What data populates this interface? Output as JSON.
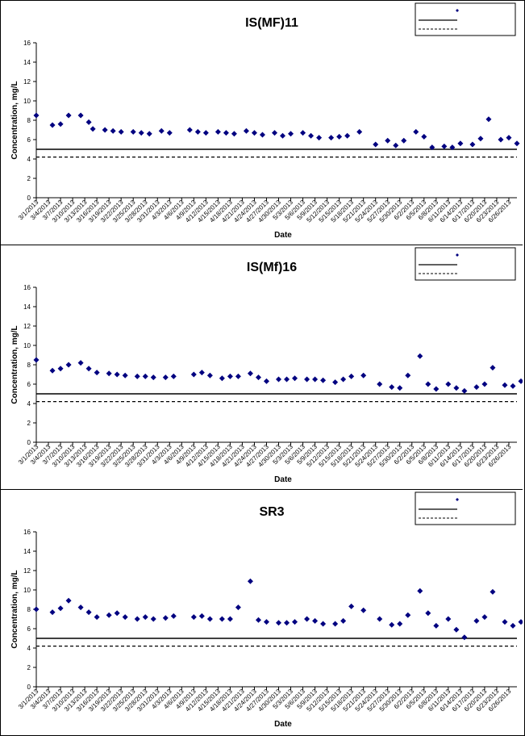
{
  "colors": {
    "marker": "#000080",
    "line": "#000000",
    "background": "#ffffff"
  },
  "chart_data": [
    {
      "type": "scatter",
      "title": "IS(MF)11",
      "xlabel": "Date",
      "ylabel": "Concentration, mg/L",
      "ylim": [
        0,
        16
      ],
      "yticks": [
        "0",
        "2",
        "4",
        "6",
        "8",
        "10",
        "12",
        "14",
        "16"
      ],
      "xlim": [
        "3/1/2013",
        "6/28/2013"
      ],
      "xticks": [
        "3/1/2013",
        "3/4/2013",
        "3/7/2013",
        "3/10/2013",
        "3/13/2013",
        "3/16/2013",
        "3/19/2013",
        "3/22/2013",
        "3/25/2013",
        "3/28/2013",
        "3/31/2013",
        "4/3/2013",
        "4/6/2013",
        "4/9/2013",
        "4/12/2013",
        "4/15/2013",
        "4/18/2013",
        "4/21/2013",
        "4/24/2013",
        "4/27/2013",
        "4/30/2013",
        "5/3/2013",
        "5/6/2013",
        "5/9/2013",
        "5/12/2013",
        "5/15/2013",
        "5/18/2013",
        "5/21/2013",
        "5/24/2013",
        "5/27/2013",
        "5/30/2013",
        "6/2/2013",
        "6/5/2013",
        "6/8/2013",
        "6/11/2013",
        "6/14/2013",
        "6/17/2013",
        "6/20/2013",
        "6/23/2013",
        "6/26/2013"
      ],
      "grid": false,
      "legend_position": "top-right",
      "legend": [
        "",
        "",
        ""
      ],
      "reference_lines": [
        {
          "style": "solid",
          "value": 5.0
        },
        {
          "style": "dashed",
          "value": 4.2
        }
      ],
      "series": [
        {
          "x": [
            "3/1/2013",
            "3/5/2013",
            "3/7/2013",
            "3/9/2013",
            "3/12/2013",
            "3/14/2013",
            "3/15/2013",
            "3/18/2013",
            "3/20/2013",
            "3/22/2013",
            "3/25/2013",
            "3/27/2013",
            "3/29/2013",
            "4/1/2013",
            "4/3/2013",
            "4/8/2013",
            "4/10/2013",
            "4/12/2013",
            "4/15/2013",
            "4/17/2013",
            "4/19/2013",
            "4/22/2013",
            "4/24/2013",
            "4/26/2013",
            "4/29/2013",
            "5/1/2013",
            "5/3/2013",
            "5/6/2013",
            "5/8/2013",
            "5/10/2013",
            "5/13/2013",
            "5/15/2013",
            "5/17/2013",
            "5/20/2013",
            "5/24/2013",
            "5/27/2013",
            "5/29/2013",
            "5/31/2013",
            "6/3/2013",
            "6/5/2013",
            "6/7/2013",
            "6/10/2013",
            "6/12/2013",
            "6/14/2013",
            "6/17/2013",
            "6/19/2013",
            "6/21/2013",
            "6/24/2013",
            "6/26/2013",
            "6/28/2013"
          ],
          "values": [
            8.5,
            7.5,
            7.6,
            8.5,
            8.5,
            7.8,
            7.1,
            7.0,
            6.9,
            6.8,
            6.8,
            6.7,
            6.6,
            6.9,
            6.7,
            7.0,
            6.8,
            6.7,
            6.8,
            6.7,
            6.6,
            6.9,
            6.7,
            6.5,
            6.7,
            6.4,
            6.6,
            6.7,
            6.4,
            6.2,
            6.2,
            6.3,
            6.4,
            6.8,
            5.5,
            5.9,
            5.4,
            5.9,
            6.8,
            6.3,
            5.2,
            5.3,
            5.2,
            5.6,
            5.5,
            6.1,
            8.1,
            6.0,
            6.2,
            5.6
          ]
        }
      ]
    },
    {
      "type": "scatter",
      "title": "IS(Mf)16",
      "xlabel": "Date",
      "ylabel": "Concentration, mg/L",
      "ylim": [
        0,
        16
      ],
      "yticks": [
        "0",
        "2",
        "4",
        "6",
        "8",
        "10",
        "12",
        "14",
        "16"
      ],
      "xlim": [
        "3/1/2013",
        "6/28/2013"
      ],
      "xticks": [
        "3/1/2013",
        "3/4/2013",
        "3/7/2013",
        "3/10/2013",
        "3/13/2013",
        "3/16/2013",
        "3/19/2013",
        "3/22/2013",
        "3/25/2013",
        "3/28/2013",
        "3/31/2013",
        "4/3/2013",
        "4/6/2013",
        "4/9/2013",
        "4/12/2013",
        "4/15/2013",
        "4/18/2013",
        "4/21/2013",
        "4/24/2013",
        "4/27/2013",
        "4/30/2013",
        "5/3/2013",
        "5/6/2013",
        "5/9/2013",
        "5/12/2013",
        "5/15/2013",
        "5/18/2013",
        "5/21/2013",
        "5/24/2013",
        "5/27/2013",
        "5/30/2013",
        "6/2/2013",
        "6/5/2013",
        "6/8/2013",
        "6/11/2013",
        "6/14/2013",
        "6/17/2013",
        "6/20/2013",
        "6/23/2013",
        "6/26/2013"
      ],
      "grid": false,
      "legend_position": "top-right",
      "legend": [
        "",
        "",
        ""
      ],
      "reference_lines": [
        {
          "style": "solid",
          "value": 5.0
        },
        {
          "style": "dashed",
          "value": 4.2
        }
      ],
      "series": [
        {
          "x": [
            "3/1/2013",
            "3/5/2013",
            "3/7/2013",
            "3/9/2013",
            "3/12/2013",
            "3/14/2013",
            "3/16/2013",
            "3/19/2013",
            "3/21/2013",
            "3/23/2013",
            "3/26/2013",
            "3/28/2013",
            "3/30/2013",
            "4/2/2013",
            "4/4/2013",
            "4/9/2013",
            "4/11/2013",
            "4/13/2013",
            "4/16/2013",
            "4/18/2013",
            "4/20/2013",
            "4/23/2013",
            "4/25/2013",
            "4/27/2013",
            "4/30/2013",
            "5/2/2013",
            "5/4/2013",
            "5/7/2013",
            "5/9/2013",
            "5/11/2013",
            "5/14/2013",
            "5/16/2013",
            "5/18/2013",
            "5/21/2013",
            "5/25/2013",
            "5/28/2013",
            "5/30/2013",
            "6/1/2013",
            "6/4/2013",
            "6/6/2013",
            "6/8/2013",
            "6/11/2013",
            "6/13/2013",
            "6/15/2013",
            "6/18/2013",
            "6/20/2013",
            "6/22/2013",
            "6/25/2013",
            "6/27/2013",
            "6/29/2013"
          ],
          "values": [
            8.5,
            7.4,
            7.6,
            8.0,
            8.2,
            7.6,
            7.2,
            7.1,
            7.0,
            6.9,
            6.8,
            6.8,
            6.7,
            6.7,
            6.8,
            7.0,
            7.2,
            6.9,
            6.6,
            6.8,
            6.8,
            7.1,
            6.7,
            6.3,
            6.5,
            6.5,
            6.6,
            6.5,
            6.5,
            6.4,
            6.2,
            6.5,
            6.8,
            6.9,
            6.0,
            5.7,
            5.6,
            6.9,
            8.9,
            6.0,
            5.5,
            6.0,
            5.6,
            5.3,
            5.7,
            6.0,
            7.7,
            5.9,
            5.8,
            6.3
          ]
        }
      ]
    },
    {
      "type": "scatter",
      "title": "SR3",
      "xlabel": "Date",
      "ylabel": "Concentration, mg/L",
      "ylim": [
        0,
        16
      ],
      "yticks": [
        "0",
        "2",
        "4",
        "6",
        "8",
        "10",
        "12",
        "14",
        "16"
      ],
      "xlim": [
        "3/1/2013",
        "6/28/2013"
      ],
      "xticks": [
        "3/1/2013",
        "3/4/2013",
        "3/7/2013",
        "3/10/2013",
        "3/13/2013",
        "3/16/2013",
        "3/19/2013",
        "3/22/2013",
        "3/25/2013",
        "3/28/2013",
        "3/31/2013",
        "4/3/2013",
        "4/6/2013",
        "4/9/2013",
        "4/12/2013",
        "4/15/2013",
        "4/18/2013",
        "4/21/2013",
        "4/24/2013",
        "4/27/2013",
        "4/30/2013",
        "5/3/2013",
        "5/6/2013",
        "5/9/2013",
        "5/12/2013",
        "5/15/2013",
        "5/18/2013",
        "5/21/2013",
        "5/24/2013",
        "5/27/2013",
        "5/30/2013",
        "6/2/2013",
        "6/5/2013",
        "6/8/2013",
        "6/11/2013",
        "6/14/2013",
        "6/17/2013",
        "6/20/2013",
        "6/23/2013",
        "6/26/2013"
      ],
      "grid": false,
      "legend_position": "top-right",
      "legend": [
        "",
        "",
        ""
      ],
      "reference_lines": [
        {
          "style": "solid",
          "value": 5.0
        },
        {
          "style": "dashed",
          "value": 4.2
        }
      ],
      "series": [
        {
          "x": [
            "3/1/2013",
            "3/5/2013",
            "3/7/2013",
            "3/9/2013",
            "3/12/2013",
            "3/14/2013",
            "3/16/2013",
            "3/19/2013",
            "3/21/2013",
            "3/23/2013",
            "3/26/2013",
            "3/28/2013",
            "3/30/2013",
            "4/2/2013",
            "4/4/2013",
            "4/9/2013",
            "4/11/2013",
            "4/13/2013",
            "4/16/2013",
            "4/18/2013",
            "4/20/2013",
            "4/23/2013",
            "4/25/2013",
            "4/27/2013",
            "4/30/2013",
            "5/2/2013",
            "5/4/2013",
            "5/7/2013",
            "5/9/2013",
            "5/11/2013",
            "5/14/2013",
            "5/16/2013",
            "5/18/2013",
            "5/21/2013",
            "5/25/2013",
            "5/28/2013",
            "5/30/2013",
            "6/1/2013",
            "6/4/2013",
            "6/6/2013",
            "6/8/2013",
            "6/11/2013",
            "6/13/2013",
            "6/15/2013",
            "6/18/2013",
            "6/20/2013",
            "6/22/2013",
            "6/25/2013",
            "6/27/2013",
            "6/29/2013"
          ],
          "values": [
            8.0,
            7.7,
            8.1,
            8.9,
            8.2,
            7.7,
            7.2,
            7.4,
            7.6,
            7.2,
            7.0,
            7.2,
            7.0,
            7.1,
            7.3,
            7.2,
            7.3,
            7.0,
            7.0,
            7.0,
            8.2,
            10.9,
            6.9,
            6.7,
            6.6,
            6.6,
            6.7,
            7.0,
            6.8,
            6.5,
            6.5,
            6.8,
            8.3,
            7.9,
            7.0,
            6.4,
            6.5,
            7.4,
            9.9,
            7.6,
            6.3,
            7.0,
            5.9,
            5.1,
            6.8,
            7.2,
            9.8,
            6.7,
            6.3,
            6.7
          ]
        }
      ]
    }
  ]
}
